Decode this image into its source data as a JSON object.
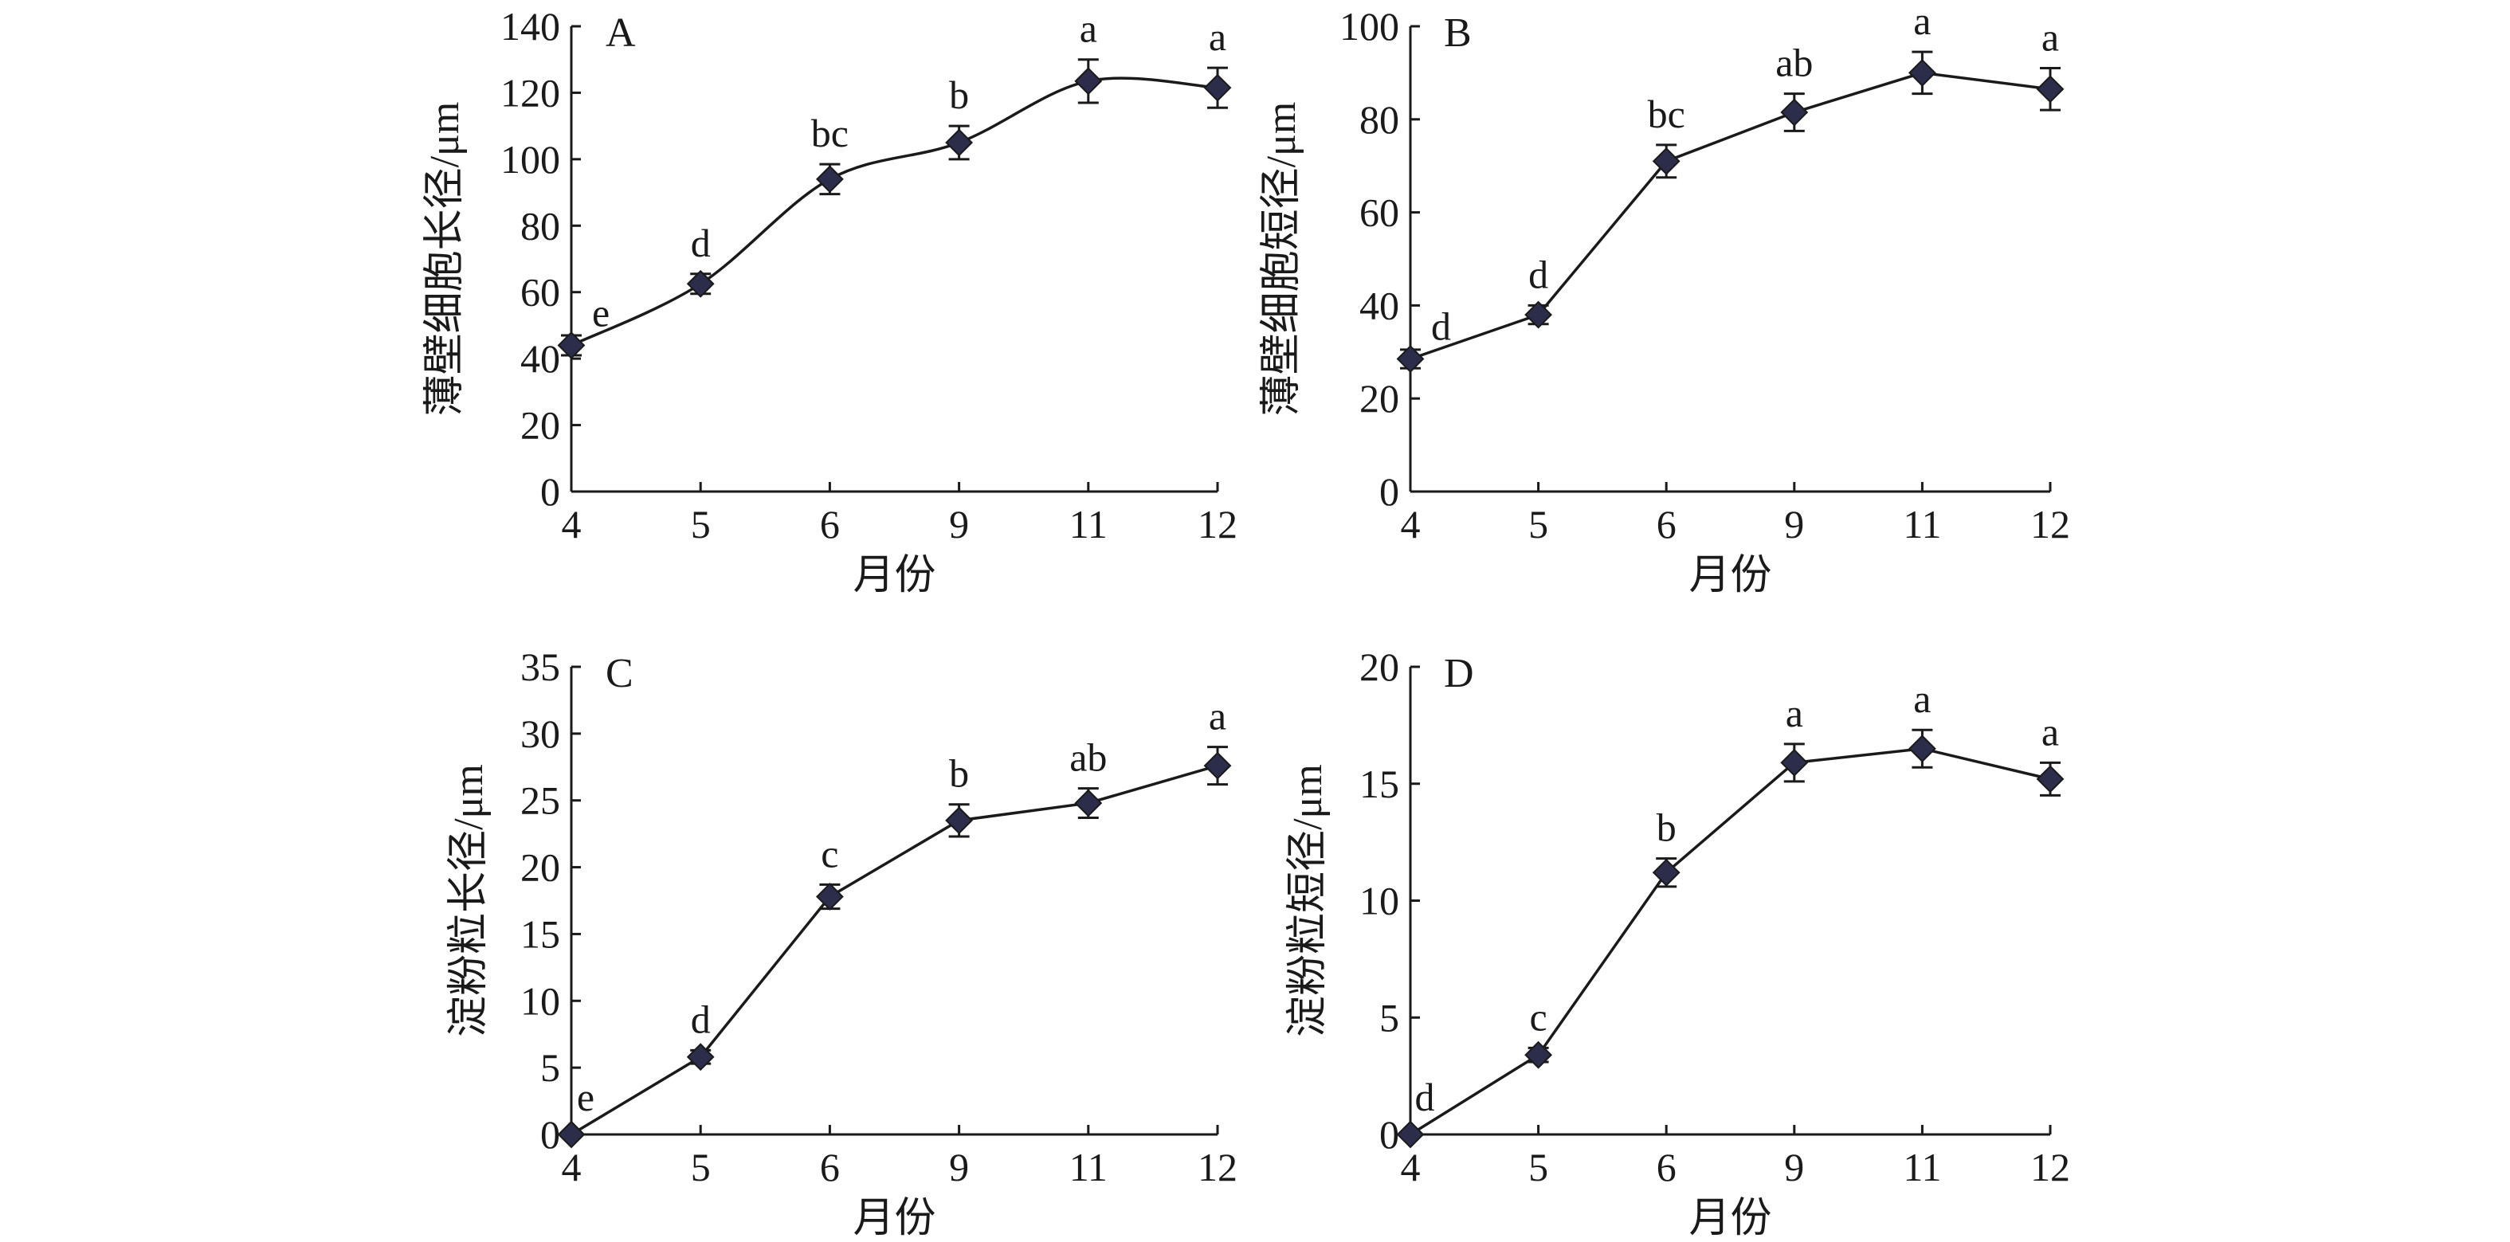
{
  "chart_data": [
    {
      "type": "line",
      "panel_label": "A",
      "categories": [
        "4",
        "5",
        "6",
        "9",
        "11",
        "12"
      ],
      "xlabel": "月份",
      "ylabel": "薄壁细胞长径/μm",
      "ylim": [
        0,
        140
      ],
      "yticks": [
        "0",
        "20",
        "40",
        "60",
        "80",
        "100",
        "120",
        "140"
      ],
      "smooth": true,
      "series": [
        {
          "values": [
            44,
            62.5,
            94,
            105,
            123.5,
            121.5
          ],
          "errors": [
            3,
            3,
            4.5,
            5,
            6.5,
            6
          ],
          "labels": [
            "e",
            "d",
            "bc",
            "b",
            "a",
            "a"
          ]
        }
      ]
    },
    {
      "type": "line",
      "panel_label": "B",
      "categories": [
        "4",
        "5",
        "6",
        "9",
        "11",
        "12"
      ],
      "xlabel": "月份",
      "ylabel": "薄壁细胞短径/μm",
      "ylim": [
        0,
        100
      ],
      "yticks": [
        "0",
        "20",
        "40",
        "60",
        "80",
        "100"
      ],
      "smooth": false,
      "series": [
        {
          "values": [
            28.5,
            38,
            71,
            81.5,
            90,
            86.5
          ],
          "errors": [
            2,
            2,
            3.5,
            4,
            4.5,
            4.5
          ],
          "labels": [
            "d",
            "d",
            "bc",
            "ab",
            "a",
            "a"
          ]
        }
      ]
    },
    {
      "type": "line",
      "panel_label": "C",
      "categories": [
        "4",
        "5",
        "6",
        "9",
        "11",
        "12"
      ],
      "xlabel": "月份",
      "ylabel": "淀粉粒长径/μm",
      "ylim": [
        0,
        35
      ],
      "yticks": [
        "0",
        "5",
        "10",
        "15",
        "20",
        "25",
        "30",
        "35"
      ],
      "smooth": false,
      "series": [
        {
          "values": [
            0,
            5.8,
            17.8,
            23.5,
            24.8,
            27.6
          ],
          "errors": [
            0,
            0.5,
            0.9,
            1.2,
            1.1,
            1.4
          ],
          "labels": [
            "e",
            "d",
            "c",
            "b",
            "ab",
            "a"
          ]
        }
      ]
    },
    {
      "type": "line",
      "panel_label": "D",
      "categories": [
        "4",
        "5",
        "6",
        "9",
        "11",
        "12"
      ],
      "xlabel": "月份",
      "ylabel": "淀粉粒短径/μm",
      "ylim": [
        0,
        20
      ],
      "yticks": [
        "0",
        "5",
        "10",
        "15",
        "20"
      ],
      "smooth": false,
      "series": [
        {
          "values": [
            0,
            3.4,
            11.2,
            15.9,
            16.5,
            15.2
          ],
          "errors": [
            0,
            0.3,
            0.6,
            0.8,
            0.8,
            0.7
          ],
          "labels": [
            "d",
            "c",
            "b",
            "a",
            "a",
            "a"
          ]
        }
      ]
    }
  ]
}
